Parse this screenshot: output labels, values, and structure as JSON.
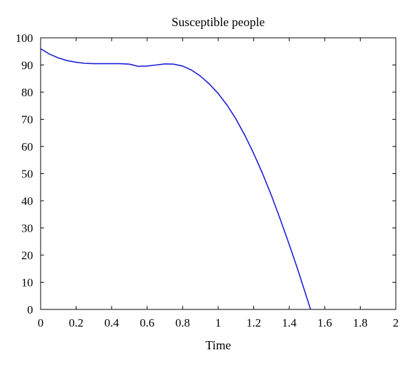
{
  "chart_data": {
    "type": "line",
    "title": "Susceptible people",
    "xlabel": "Time",
    "ylabel": "",
    "xlim": [
      0,
      2
    ],
    "ylim": [
      0,
      100
    ],
    "xticks": [
      "0",
      "0.2",
      "0.4",
      "0.6",
      "0.8",
      "1",
      "1.2",
      "1.4",
      "1.6",
      "1.8",
      "2"
    ],
    "yticks": [
      "0",
      "10",
      "20",
      "30",
      "40",
      "50",
      "60",
      "70",
      "80",
      "90",
      "100"
    ],
    "grid": false,
    "legend": "none",
    "series": [
      {
        "color": "#1a1ad6",
        "x": [
          0,
          0.05,
          0.1,
          0.15,
          0.2,
          0.25,
          0.3,
          0.35,
          0.4,
          0.45,
          0.5,
          0.55,
          0.6,
          0.65,
          0.7,
          0.75,
          0.8,
          0.85,
          0.9,
          0.95,
          1.0,
          1.05,
          1.1,
          1.15,
          1.2,
          1.25,
          1.3,
          1.35,
          1.4,
          1.45,
          1.5,
          1.52
        ],
        "y": [
          96,
          94,
          92.6,
          91.6,
          91,
          90.6,
          90.5,
          90.5,
          90.5,
          90.5,
          90.3,
          89.5,
          89.6,
          90,
          90.4,
          90.3,
          89.6,
          88.1,
          85.9,
          83,
          79.5,
          75.2,
          70.1,
          64.1,
          57.4,
          50,
          41.9,
          33.1,
          23.9,
          14.3,
          4.1,
          0
        ]
      }
    ]
  }
}
